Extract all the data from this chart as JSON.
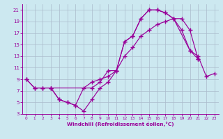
{
  "xlabel": "Windchill (Refroidissement éolien,°C)",
  "bg_color": "#cce8f0",
  "line_color": "#990099",
  "grid_color": "#aabbcc",
  "top_x": [
    0,
    1,
    2,
    3,
    8,
    9,
    10,
    11,
    12,
    13,
    14,
    15,
    16,
    17,
    18,
    19,
    20,
    21
  ],
  "top_y": [
    9,
    7.5,
    7.5,
    7.5,
    7.5,
    8.5,
    10.5,
    10.5,
    15.5,
    16.5,
    19.5,
    21,
    21,
    20.5,
    19.5,
    19.5,
    17.5,
    12.5
  ],
  "mid_x": [
    0,
    1,
    2,
    3,
    4,
    5,
    6,
    7,
    8,
    9,
    10,
    11,
    12,
    13,
    14,
    15,
    16,
    17,
    18,
    20,
    21,
    22,
    23
  ],
  "mid_y": [
    9,
    7.5,
    7.5,
    7.5,
    5.5,
    5.0,
    4.5,
    7.5,
    8.5,
    9.0,
    9.5,
    10.5,
    13.0,
    14.5,
    16.5,
    17.5,
    18.5,
    19.0,
    19.5,
    14.0,
    13.0,
    9.5,
    10.0
  ],
  "bot_x": [
    3,
    4,
    5,
    6,
    7,
    8,
    9,
    10,
    11,
    12,
    13,
    14,
    15,
    16,
    17,
    18,
    19,
    20,
    21
  ],
  "bot_y": [
    7.5,
    5.5,
    5.0,
    4.5,
    3.5,
    5.5,
    7.5,
    8.5,
    10.5,
    15.5,
    16.5,
    19.5,
    21.0,
    21.0,
    20.5,
    19.5,
    17.5,
    14.0,
    12.5
  ],
  "xlim": [
    -0.5,
    23.5
  ],
  "ylim": [
    3,
    22
  ],
  "yticks": [
    3,
    5,
    7,
    9,
    11,
    13,
    15,
    17,
    19,
    21
  ],
  "xticks": [
    0,
    1,
    2,
    3,
    4,
    5,
    6,
    7,
    8,
    9,
    10,
    11,
    12,
    13,
    14,
    15,
    16,
    17,
    18,
    19,
    20,
    21,
    22,
    23
  ]
}
